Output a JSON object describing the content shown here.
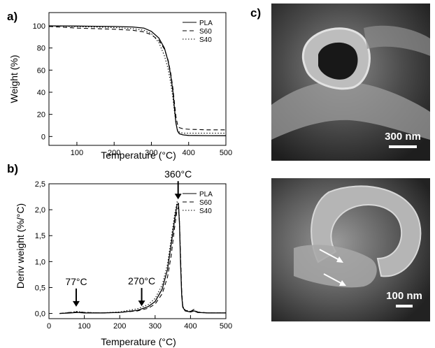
{
  "panel_labels": {
    "a": "a)",
    "b": "b)",
    "c": "c)"
  },
  "chart_data": [
    {
      "type": "line",
      "xlabel": "Temperature (°C)",
      "ylabel": "Weight (%)",
      "xlim": [
        25,
        500
      ],
      "ylim": [
        -8,
        112
      ],
      "xticks": [
        "100",
        "200",
        "300",
        "400",
        "500"
      ],
      "yticks": [
        "0",
        "20",
        "40",
        "60",
        "80",
        "100"
      ],
      "legend_position": "top-right",
      "series": [
        {
          "name": "PLA",
          "style": "solid",
          "x": [
            25,
            100,
            200,
            250,
            280,
            300,
            320,
            335,
            345,
            352,
            358,
            362,
            366,
            370,
            375,
            385,
            400,
            450,
            500
          ],
          "y": [
            100,
            99.8,
            99.4,
            99,
            98,
            95,
            89,
            80,
            68,
            55,
            40,
            25,
            12,
            5,
            2.5,
            1.5,
            1,
            0.8,
            0.7
          ]
        },
        {
          "name": "S60",
          "style": "dashed",
          "x": [
            25,
            100,
            200,
            250,
            280,
            300,
            320,
            335,
            345,
            352,
            358,
            362,
            366,
            370,
            375,
            385,
            400,
            450,
            500
          ],
          "y": [
            99.5,
            98,
            97,
            96,
            94.5,
            92,
            87,
            79,
            69,
            57,
            43,
            30,
            18,
            11,
            8,
            7,
            6.5,
            6,
            6
          ]
        },
        {
          "name": "S40",
          "style": "dotted",
          "x": [
            25,
            100,
            200,
            250,
            280,
            300,
            320,
            335,
            345,
            352,
            358,
            362,
            366,
            370,
            375,
            385,
            400,
            450,
            500
          ],
          "y": [
            100,
            99.3,
            98.5,
            97.5,
            96,
            93,
            85,
            73,
            61,
            48,
            34,
            22,
            12,
            6,
            4,
            3,
            3,
            3,
            3
          ]
        }
      ]
    },
    {
      "type": "line",
      "xlabel": "Temperature (°C)",
      "ylabel": "Deriv weight (%/°C)",
      "xlim": [
        0,
        500
      ],
      "ylim": [
        -0.1,
        2.5
      ],
      "xticks": [
        "0",
        "100",
        "200",
        "300",
        "400",
        "500"
      ],
      "yticks": [
        "0,0",
        "0,5",
        "1,0",
        "1,5",
        "2,0",
        "2,5"
      ],
      "legend_position": "top-right",
      "annotations": [
        "77°C",
        "270°C",
        "360°C"
      ],
      "annotation_x": [
        77,
        262,
        365
      ],
      "series": [
        {
          "name": "PLA",
          "style": "solid",
          "x": [
            30,
            60,
            80,
            100,
            150,
            200,
            250,
            280,
            300,
            320,
            335,
            345,
            355,
            362,
            366,
            369,
            372,
            375,
            378,
            385,
            400,
            410,
            420,
            450,
            500
          ],
          "y": [
            0,
            0.01,
            0.02,
            0.01,
            0.01,
            0.02,
            0.06,
            0.13,
            0.23,
            0.47,
            0.85,
            1.32,
            1.8,
            2.1,
            2.12,
            1.7,
            0.95,
            0.35,
            0.12,
            0.05,
            0.03,
            0.05,
            0.02,
            0.01,
            0.01
          ]
        },
        {
          "name": "S60",
          "style": "dashed",
          "x": [
            30,
            60,
            80,
            100,
            150,
            200,
            250,
            280,
            300,
            320,
            335,
            345,
            355,
            362,
            366,
            369,
            372,
            375,
            378,
            385,
            400,
            410,
            420,
            450,
            500
          ],
          "y": [
            0,
            0.02,
            0.03,
            0.02,
            0.01,
            0.02,
            0.05,
            0.1,
            0.18,
            0.38,
            0.7,
            1.1,
            1.65,
            2.0,
            2.05,
            1.75,
            1.1,
            0.45,
            0.15,
            0.06,
            0.04,
            0.08,
            0.03,
            0.01,
            0.01
          ]
        },
        {
          "name": "S40",
          "style": "dotted",
          "x": [
            30,
            60,
            80,
            100,
            150,
            200,
            250,
            280,
            300,
            320,
            335,
            345,
            355,
            362,
            366,
            369,
            372,
            375,
            378,
            385,
            400,
            410,
            420,
            450,
            500
          ],
          "y": [
            0,
            0.02,
            0.04,
            0.02,
            0.01,
            0.03,
            0.09,
            0.17,
            0.29,
            0.55,
            0.95,
            1.42,
            1.9,
            2.15,
            2.13,
            1.75,
            1.05,
            0.4,
            0.14,
            0.06,
            0.04,
            0.06,
            0.02,
            0.01,
            0.01
          ]
        }
      ]
    }
  ],
  "micrographs": [
    {
      "scale_label": "300 nm"
    },
    {
      "scale_label": "100 nm"
    }
  ]
}
